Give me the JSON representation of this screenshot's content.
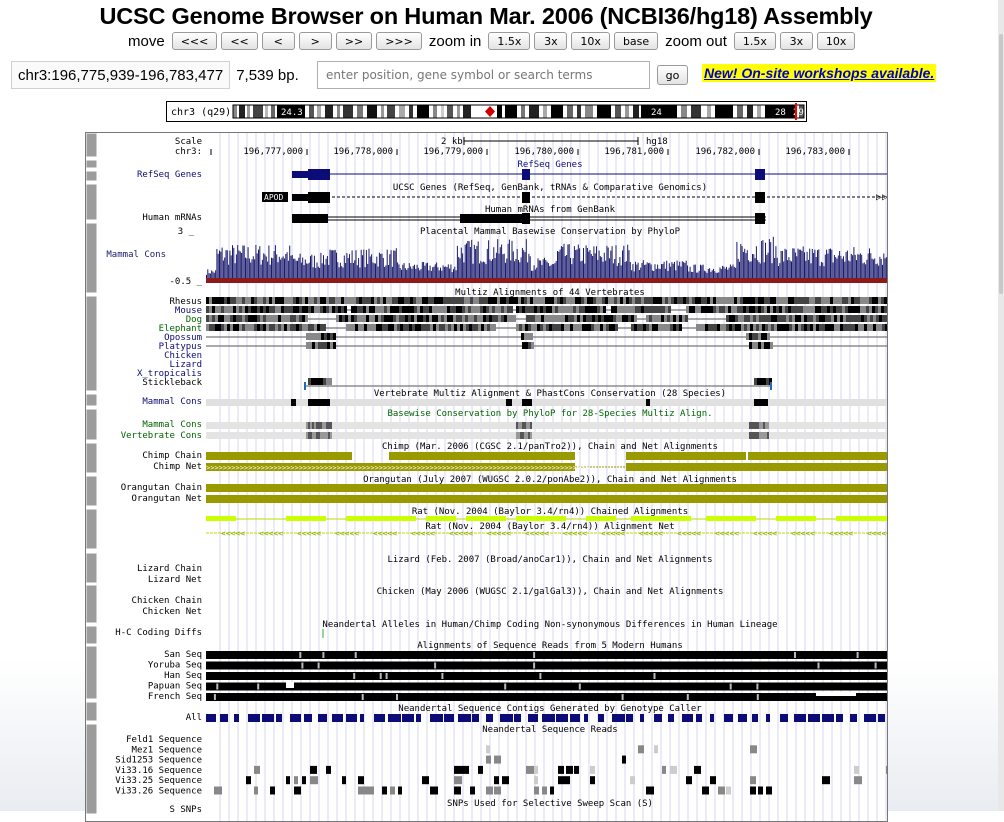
{
  "header": {
    "title": "UCSC Genome Browser on Human Mar. 2006 (NCBI36/hg18) Assembly"
  },
  "nav": {
    "move_label": "move",
    "move_buttons": [
      "<<<",
      "<<",
      "<",
      ">",
      ">>",
      ">>>"
    ],
    "zoom_in_label": "zoom in",
    "zoom_in_buttons": [
      "1.5x",
      "3x",
      "10x",
      "base"
    ],
    "zoom_out_label": "zoom out",
    "zoom_out_buttons": [
      "1.5x",
      "3x",
      "10x"
    ]
  },
  "position": {
    "value": "chr3:196,775,939-196,783,477",
    "size": "7,539 bp."
  },
  "search": {
    "placeholder": "enter position, gene symbol or search terms"
  },
  "go_label": "go",
  "news_link": "New! On-site workshops available.",
  "ideogram": {
    "chrom_label": "chr3 (q29)",
    "band_labels": [
      "24.3",
      "24",
      "28",
      "29"
    ]
  },
  "scale": {
    "label": "Scale",
    "chrom": "chr3:",
    "bar_label": "2 kb",
    "assembly": "hg18",
    "ticks": [
      "196,777,000",
      "196,778,000",
      "196,779,000",
      "196,780,000",
      "196,781,000",
      "196,782,000",
      "196,783,000"
    ]
  },
  "colors": {
    "gene": "#0c0c78",
    "conservation": "#1a1a6e",
    "chain": "#999900",
    "rat": "#ccff00",
    "lowcons": "#8b1a1a",
    "green_label": "#006400"
  },
  "tracks": {
    "refseq": {
      "label": "RefSeq Genes",
      "center": "RefSeq Genes"
    },
    "ucsc": {
      "center": "UCSC Genes (RefSeq, GenBank, tRNAs & Comparative Genomics)",
      "gene_name": "APOD"
    },
    "mrna": {
      "label": "Human mRNAs",
      "center": "Human mRNAs from GenBank"
    },
    "phylop": {
      "center": "Placental Mammal Basewise Conservation by PhyloP",
      "label": "Mammal Cons",
      "top": "3 _",
      "bottom": "-0.5 _"
    },
    "multiz": {
      "center": "Multiz Alignments of 44 Vertebrates",
      "species": [
        "Rhesus",
        "Mouse",
        "Dog",
        "Elephant",
        "Opossum",
        "Platypus",
        "Chicken",
        "Lizard",
        "X_tropicalis",
        "Stickleback"
      ]
    },
    "vert": {
      "center": "Vertebrate Multiz Alignment & PhastCons Conservation (28 Species)",
      "label": "Mammal Cons"
    },
    "phylop28": {
      "center": "Basewise Conservation by PhyloP for 28-Species Multiz Align.",
      "labels": [
        "Mammal Cons",
        "Vertebrate Cons"
      ]
    },
    "chimp": {
      "center": "Chimp (Mar. 2006 (CGSC 2.1/panTro2)), Chain and Net Alignments",
      "labels": [
        "Chimp Chain",
        "Chimp Net"
      ]
    },
    "orang": {
      "center": "Orangutan (July 2007 (WUGSC 2.0.2/ponAbe2)), Chain and Net Alignments",
      "labels": [
        "Orangutan Chain",
        "Orangutan Net"
      ]
    },
    "rat": {
      "center1": "Rat (Nov. 2004 (Baylor 3.4/rn4)) Chained Alignments",
      "center2": "Rat (Nov. 2004 (Baylor 3.4/rn4)) Alignment Net"
    },
    "lizard": {
      "center": "Lizard (Feb. 2007 (Broad/anoCar1)), Chain and Net Alignments",
      "labels": [
        "Lizard Chain",
        "Lizard Net"
      ]
    },
    "chicken": {
      "center": "Chicken (May 2006 (WUGSC 2.1/galGal3)), Chain and Net Alignments",
      "labels": [
        "Chicken Chain",
        "Chicken Net"
      ]
    },
    "hc": {
      "center": "Neandertal Alleles in Human/Chimp Coding Non-synonymous Differences in Human Lineage",
      "label": "H-C Coding Diffs"
    },
    "modern": {
      "center": "Alignments of Sequence Reads from 5 Modern Humans",
      "labels": [
        "San Seq",
        "Yoruba Seq",
        "Han Seq",
        "Papuan Seq",
        "French Seq"
      ]
    },
    "contigs": {
      "center": "Neandertal Sequence Contigs Generated by Genotype Caller",
      "label": "All"
    },
    "reads": {
      "center": "Neandertal Sequence Reads",
      "labels": [
        "Feld1 Sequence",
        "Mez1 Sequence",
        "Sid1253 Sequence",
        "Vi33.16 Sequence",
        "Vi33.25 Sequence",
        "Vi33.26 Sequence"
      ]
    },
    "snps": {
      "center": "SNPs Used for Selective Sweep Scan (S)",
      "label": "S SNPs"
    }
  }
}
